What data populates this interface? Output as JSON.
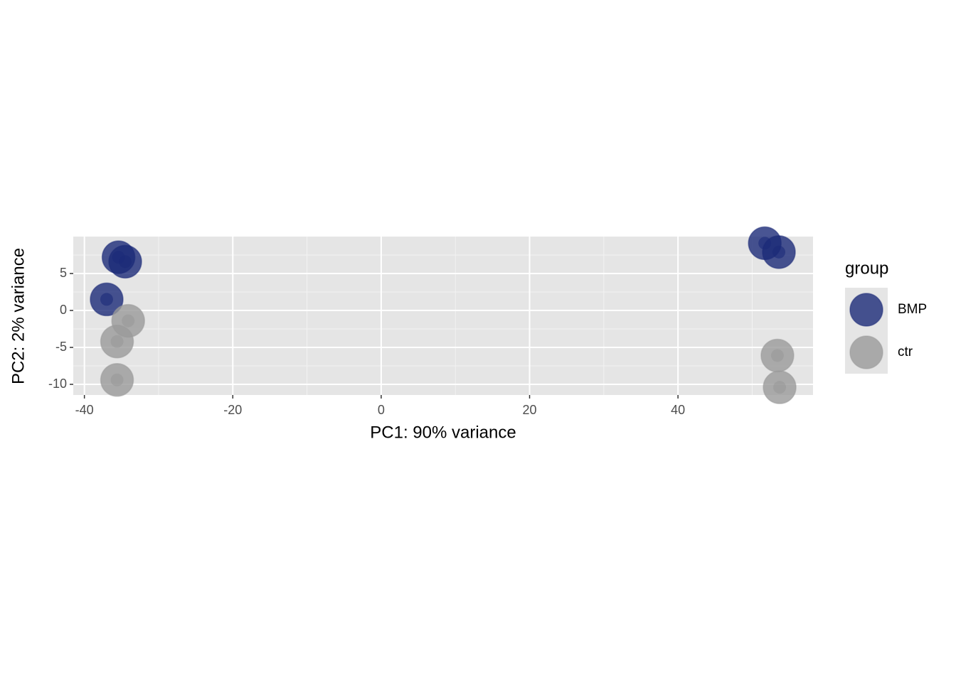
{
  "chart_data": {
    "type": "scatter",
    "xlabel": "PC1: 90% variance",
    "ylabel": "PC2: 2% variance",
    "legend_title": "group",
    "xlim": [
      -41.5,
      58.2
    ],
    "ylim": [
      -11.44,
      10.0
    ],
    "xticks": [
      -40,
      -20,
      0,
      20,
      40
    ],
    "yticks": [
      5,
      0,
      -5,
      -10
    ],
    "grid": true,
    "legend": "right",
    "series": [
      {
        "name": "BMP",
        "color": "#1b2a78",
        "x": [
          -35.4,
          -34.5,
          -37.0,
          51.7,
          53.6
        ],
        "values": [
          7.2,
          6.6,
          1.5,
          9.1,
          7.9
        ]
      },
      {
        "name": "ctr",
        "color": "#9a9a9a",
        "x": [
          -34.1,
          -35.6,
          -35.6,
          53.4,
          53.7
        ],
        "values": [
          -1.4,
          -4.2,
          -9.4,
          -6.1,
          -10.4
        ]
      }
    ]
  }
}
